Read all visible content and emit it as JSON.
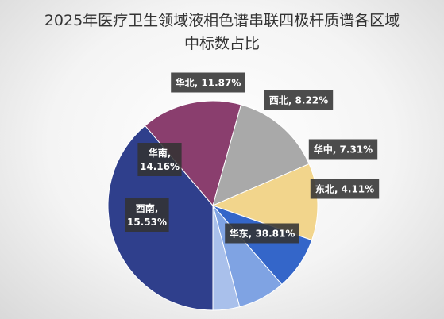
{
  "chart_data": {
    "type": "pie",
    "title_line1": "2025年医疗卫生领域液相色谱串联四极杆质谱各区域",
    "title_line2": "中标数占比",
    "categories": [
      "华东",
      "西南",
      "华南",
      "华北",
      "西北",
      "华中",
      "东北"
    ],
    "values": [
      38.81,
      15.53,
      14.16,
      11.87,
      8.22,
      7.31,
      4.11
    ],
    "labels": [
      {
        "lines": [
          "华东, 38.81%"
        ]
      },
      {
        "lines": [
          "西南,",
          "15.53%"
        ]
      },
      {
        "lines": [
          "华南,",
          "14.16%"
        ]
      },
      {
        "lines": [
          "华北, 11.87%"
        ]
      },
      {
        "lines": [
          "西北, 8.22%"
        ]
      },
      {
        "lines": [
          "华中, 7.31%"
        ]
      },
      {
        "lines": [
          "东北, 4.11%"
        ]
      }
    ],
    "colors": [
      "#2f3f8c",
      "#8a3e6e",
      "#a9a9a9",
      "#f2d58c",
      "#3466c9",
      "#7fa3e3",
      "#a9c0eb"
    ],
    "start_angle_deg": 90,
    "legend": "none"
  }
}
